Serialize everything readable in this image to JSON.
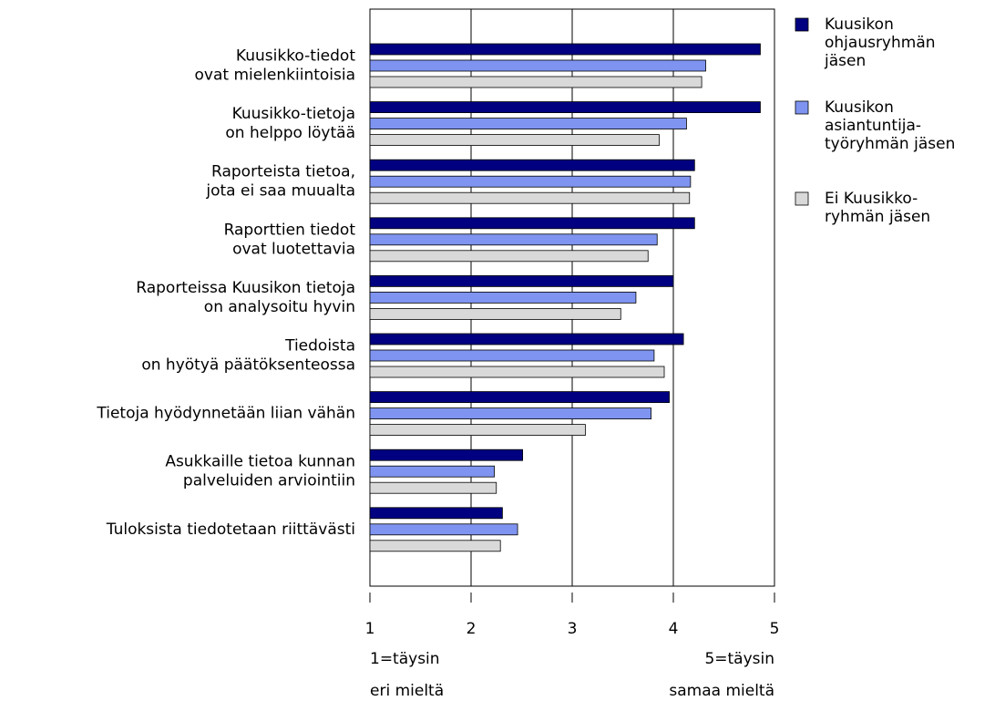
{
  "chart_data": {
    "type": "barh",
    "categories": [
      "Kuusikko-tiedot\novat mielenkiintoisia",
      "Kuusikko-tietoja\non helppo löytää",
      "Raporteista tietoa,\njota ei saa muualta",
      "Raporttien tiedot\novat luotettavia",
      "Raporteissa Kuusikon tietoja\non  analysoitu hyvin",
      "Tiedoista\non hyötyä päätöksenteossa",
      "Tietoja hyödynnetään liian vähän",
      "Asukkaille tietoa kunnan\npalveluiden arviointiin",
      "Tuloksista tiedotetaan riittävästi"
    ],
    "series": [
      {
        "name": "Kuusikon\nohjausryhmän\njäsen",
        "color": "#000080",
        "values": [
          4.86,
          4.86,
          4.21,
          4.21,
          4.0,
          4.1,
          3.96,
          2.51,
          2.31
        ]
      },
      {
        "name": "Kuusikon\nasiantuntija-\ntyöryhmän jäsen",
        "color": "#7f94f0",
        "values": [
          4.32,
          4.13,
          4.17,
          3.84,
          3.63,
          3.81,
          3.78,
          2.23,
          2.46
        ]
      },
      {
        "name": "Ei Kuusikko-\nryhmän jäsen",
        "color": "#d9d9d9",
        "values": [
          4.28,
          3.86,
          4.16,
          3.75,
          3.48,
          3.91,
          3.13,
          2.25,
          2.29
        ]
      }
    ],
    "xlim": [
      1,
      5
    ],
    "xticks": [
      1,
      2,
      3,
      4,
      5
    ],
    "grid": true,
    "annotations": [
      "1=täysin\neri mieltä",
      "5=täysin\nsamaa mieltä"
    ]
  }
}
